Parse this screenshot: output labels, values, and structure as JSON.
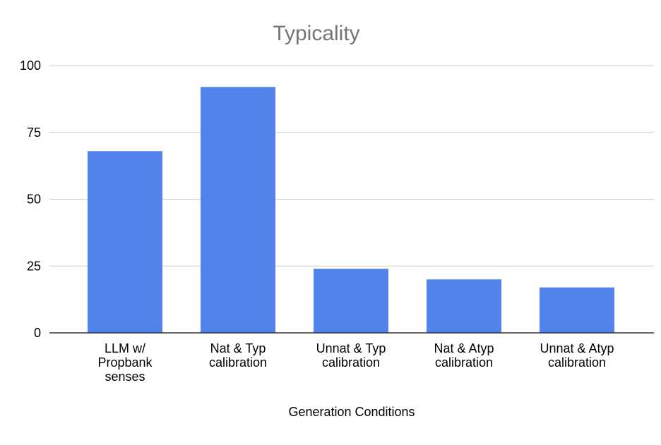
{
  "chart_data": {
    "type": "bar",
    "title": "Typicality",
    "xlabel": "Generation Conditions",
    "ylabel": "",
    "categories": [
      [
        "LLM w/",
        "Propbank",
        "senses"
      ],
      [
        "Nat & Typ",
        "calibration"
      ],
      [
        "Unnat & Typ",
        "calibration"
      ],
      [
        "Nat & Atyp",
        "calibration"
      ],
      [
        "Unnat & Atyp",
        "calibration"
      ]
    ],
    "values": [
      68,
      92,
      24,
      20,
      17
    ],
    "ylim": [
      0,
      100
    ],
    "yticks": [
      "0",
      "25",
      "50",
      "75",
      "100"
    ],
    "grid": true,
    "legend": "none",
    "bar_color": "#5283ea"
  }
}
